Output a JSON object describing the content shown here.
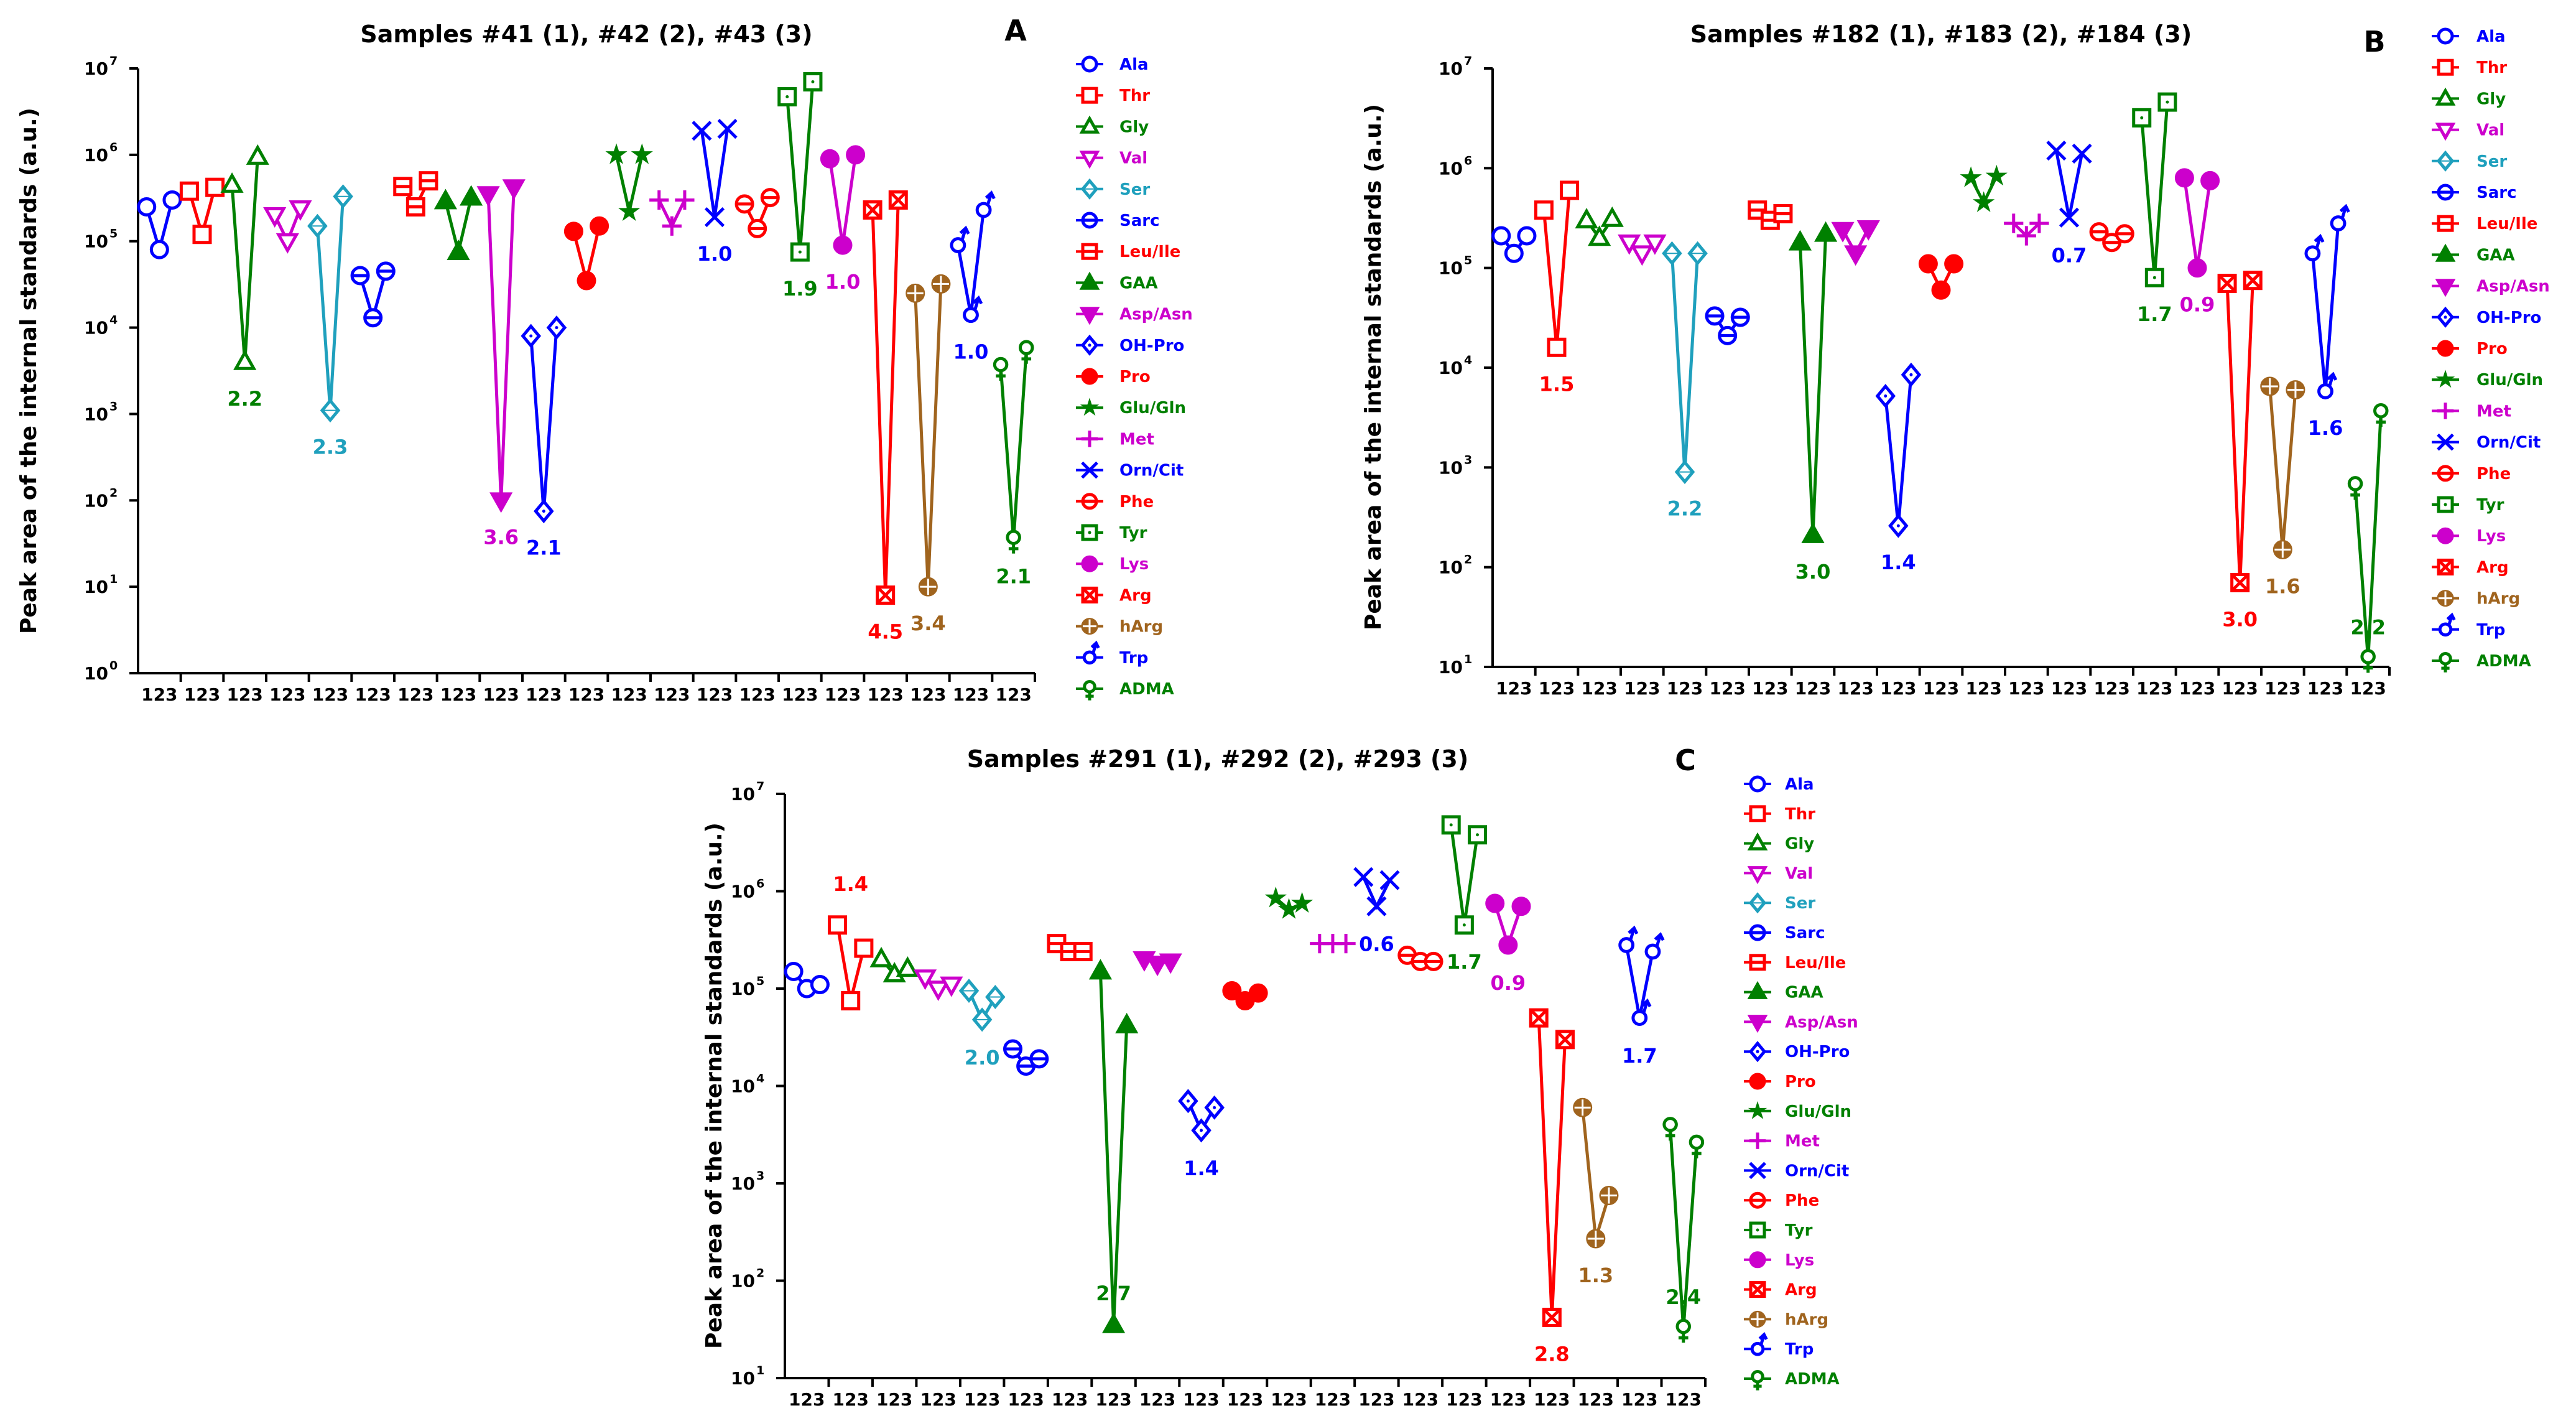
{
  "analytes": [
    {
      "name": "Ala",
      "color": "#0000ff",
      "marker": "circle-open"
    },
    {
      "name": "Thr",
      "color": "#ff0000",
      "marker": "square-open"
    },
    {
      "name": "Gly",
      "color": "#008000",
      "marker": "triangle-open"
    },
    {
      "name": "Val",
      "color": "#cc00cc",
      "marker": "triangle-down-open"
    },
    {
      "name": "Ser",
      "color": "#1fa0bd",
      "marker": "diamond-open"
    },
    {
      "name": "Sarc",
      "color": "#0000ff",
      "marker": "circle-bar"
    },
    {
      "name": "Leu/Ile",
      "color": "#ff0000",
      "marker": "square-bar"
    },
    {
      "name": "GAA",
      "color": "#008000",
      "marker": "triangle-filled"
    },
    {
      "name": "Asp/Asn",
      "color": "#cc00cc",
      "marker": "triangle-down-filled"
    },
    {
      "name": "OH-Pro",
      "color": "#0000ff",
      "marker": "diamond-dot"
    },
    {
      "name": "Pro",
      "color": "#ff0000",
      "marker": "circle-filled"
    },
    {
      "name": "Glu/Gln",
      "color": "#008000",
      "marker": "star"
    },
    {
      "name": "Met",
      "color": "#cc00cc",
      "marker": "plus"
    },
    {
      "name": "Orn/Cit",
      "color": "#0000ff",
      "marker": "x"
    },
    {
      "name": "Phe",
      "color": "#ff0000",
      "marker": "circle-bar"
    },
    {
      "name": "Tyr",
      "color": "#008000",
      "marker": "square-dot"
    },
    {
      "name": "Lys",
      "color": "#cc00cc",
      "marker": "circle-filled"
    },
    {
      "name": "Arg",
      "color": "#ff0000",
      "marker": "square-x"
    },
    {
      "name": "hArg",
      "color": "#a0641e",
      "marker": "circle-cross"
    },
    {
      "name": "Trp",
      "color": "#0000ff",
      "marker": "circle-arrow"
    },
    {
      "name": "ADMA",
      "color": "#008000",
      "marker": "circle-stem"
    }
  ],
  "chart_data": [
    {
      "panel": "A",
      "type": "line",
      "scale": "log",
      "title": "Samples #41 (1), #42 (2), #43 (3)",
      "ylabel": "Peak area of the internal standards (a.u.)",
      "ylim": [
        1,
        10000000
      ],
      "y_ticks": [
        {
          "b": "10",
          "e": "0"
        },
        {
          "b": "10",
          "e": "1"
        },
        {
          "b": "10",
          "e": "2"
        },
        {
          "b": "10",
          "e": "3"
        },
        {
          "b": "10",
          "e": "4"
        },
        {
          "b": "10",
          "e": "5"
        },
        {
          "b": "10",
          "e": "6"
        },
        {
          "b": "10",
          "e": "7"
        }
      ],
      "group_tick_label": "123",
      "series": [
        {
          "name": "Ala",
          "values": [
            250000,
            80000,
            300000
          ]
        },
        {
          "name": "Thr",
          "values": [
            380000,
            120000,
            420000
          ]
        },
        {
          "name": "Gly",
          "values": [
            450000,
            4000,
            950000
          ],
          "annotation": "2.2"
        },
        {
          "name": "Val",
          "values": [
            200000,
            100000,
            240000
          ]
        },
        {
          "name": "Ser",
          "values": [
            150000,
            1100,
            330000
          ],
          "annotation": "2.3"
        },
        {
          "name": "Sarc",
          "values": [
            40000,
            13000,
            45000
          ]
        },
        {
          "name": "Leu/Ile",
          "values": [
            430000,
            250000,
            500000
          ]
        },
        {
          "name": "GAA",
          "values": [
            290000,
            75000,
            320000
          ]
        },
        {
          "name": "Asp/Asn",
          "values": [
            350000,
            100,
            420000
          ],
          "annotation": "3.6"
        },
        {
          "name": "OH-Pro",
          "values": [
            8000,
            75,
            10000
          ],
          "annotation": "2.1"
        },
        {
          "name": "Pro",
          "values": [
            130000,
            35000,
            150000
          ]
        },
        {
          "name": "Glu/Gln",
          "values": [
            1000000,
            220000,
            1000000
          ]
        },
        {
          "name": "Met",
          "values": [
            300000,
            150000,
            300000
          ]
        },
        {
          "name": "Orn/Cit",
          "values": [
            1900000,
            190000,
            2000000
          ],
          "annotation": "1.0"
        },
        {
          "name": "Phe",
          "values": [
            270000,
            140000,
            320000
          ]
        },
        {
          "name": "Tyr",
          "values": [
            4700000,
            75000,
            7000000
          ],
          "annotation": "1.9"
        },
        {
          "name": "Lys",
          "values": [
            900000,
            90000,
            1000000
          ],
          "annotation": "1.0"
        },
        {
          "name": "Arg",
          "values": [
            230000,
            8,
            300000
          ],
          "annotation": "4.5"
        },
        {
          "name": "hArg",
          "values": [
            25000,
            10,
            32000
          ],
          "annotation": "3.4"
        },
        {
          "name": "Trp",
          "values": [
            90000,
            14000,
            230000
          ],
          "annotation": "1.0"
        },
        {
          "name": "ADMA",
          "values": [
            3500,
            35,
            5500
          ],
          "annotation": "2.1"
        }
      ]
    },
    {
      "panel": "B",
      "type": "line",
      "scale": "log",
      "title": "Samples #182 (1), #183 (2), #184 (3)",
      "ylabel": "Peak area of the internal standards (a.u.)",
      "ylim": [
        10,
        10000000
      ],
      "y_ticks": [
        {
          "b": "10",
          "e": "1"
        },
        {
          "b": "10",
          "e": "2"
        },
        {
          "b": "10",
          "e": "3"
        },
        {
          "b": "10",
          "e": "4"
        },
        {
          "b": "10",
          "e": "5"
        },
        {
          "b": "10",
          "e": "6"
        },
        {
          "b": "10",
          "e": "7"
        }
      ],
      "group_tick_label": "123",
      "series": [
        {
          "name": "Ala",
          "values": [
            210000,
            140000,
            210000
          ]
        },
        {
          "name": "Thr",
          "values": [
            380000,
            16000,
            600000
          ],
          "annotation": "1.5"
        },
        {
          "name": "Gly",
          "values": [
            300000,
            200000,
            310000
          ]
        },
        {
          "name": "Val",
          "values": [
            180000,
            140000,
            180000
          ]
        },
        {
          "name": "Ser",
          "values": [
            140000,
            900,
            140000
          ],
          "annotation": "2.2"
        },
        {
          "name": "Sarc",
          "values": [
            33000,
            21000,
            32000
          ]
        },
        {
          "name": "Leu/Ile",
          "values": [
            380000,
            300000,
            350000
          ]
        },
        {
          "name": "GAA",
          "values": [
            180000,
            210,
            220000
          ],
          "annotation": "3.0"
        },
        {
          "name": "Asp/Asn",
          "values": [
            240000,
            140000,
            250000
          ]
        },
        {
          "name": "OH-Pro",
          "values": [
            5200,
            260,
            8500
          ],
          "annotation": "1.4"
        },
        {
          "name": "Pro",
          "values": [
            110000,
            60000,
            110000
          ]
        },
        {
          "name": "Glu/Gln",
          "values": [
            800000,
            450000,
            830000
          ]
        },
        {
          "name": "Met",
          "values": [
            280000,
            210000,
            280000
          ]
        },
        {
          "name": "Orn/Cit",
          "values": [
            1500000,
            320000,
            1400000
          ],
          "annotation": "0.7"
        },
        {
          "name": "Phe",
          "values": [
            230000,
            180000,
            220000
          ]
        },
        {
          "name": "Tyr",
          "values": [
            3200000,
            80000,
            4600000
          ],
          "annotation": "1.7"
        },
        {
          "name": "Lys",
          "values": [
            800000,
            100000,
            750000
          ],
          "annotation": "0.9"
        },
        {
          "name": "Arg",
          "values": [
            70000,
            70,
            75000
          ],
          "annotation": "3.0"
        },
        {
          "name": "hArg",
          "values": [
            6500,
            150,
            6000
          ],
          "annotation": "1.6"
        },
        {
          "name": "Trp",
          "values": [
            140000,
            5800,
            280000
          ],
          "annotation": "1.6"
        },
        {
          "name": "ADMA",
          "values": [
            650,
            12,
            3500
          ],
          "annotation": "2.2"
        }
      ]
    },
    {
      "panel": "C",
      "type": "line",
      "scale": "log",
      "title": "Samples #291 (1), #292 (2), #293 (3)",
      "ylabel": "Peak area of the internal standards (a.u.)",
      "ylim": [
        10,
        10000000
      ],
      "y_ticks": [
        {
          "b": "10",
          "e": "1"
        },
        {
          "b": "10",
          "e": "2"
        },
        {
          "b": "10",
          "e": "3"
        },
        {
          "b": "10",
          "e": "4"
        },
        {
          "b": "10",
          "e": "5"
        },
        {
          "b": "10",
          "e": "6"
        },
        {
          "b": "10",
          "e": "7"
        }
      ],
      "group_tick_label": "123",
      "series": [
        {
          "name": "Ala",
          "values": [
            150000,
            100000,
            110000
          ]
        },
        {
          "name": "Thr",
          "values": [
            450000,
            75000,
            260000
          ],
          "annotation": "1.4"
        },
        {
          "name": "Gly",
          "values": [
            200000,
            140000,
            160000
          ]
        },
        {
          "name": "Val",
          "values": [
            130000,
            100000,
            110000
          ]
        },
        {
          "name": "Ser",
          "values": [
            95000,
            48000,
            82000
          ],
          "annotation": "2.0"
        },
        {
          "name": "Sarc",
          "values": [
            24000,
            16000,
            19000
          ]
        },
        {
          "name": "Leu/Ile",
          "values": [
            290000,
            240000,
            240000
          ]
        },
        {
          "name": "GAA",
          "values": [
            150000,
            35,
            42000
          ],
          "annotation": "2.7"
        },
        {
          "name": "Asp/Asn",
          "values": [
            200000,
            180000,
            190000
          ]
        },
        {
          "name": "OH-Pro",
          "values": [
            7000,
            3500,
            6000
          ],
          "annotation": "1.4"
        },
        {
          "name": "Pro",
          "values": [
            95000,
            75000,
            90000
          ]
        },
        {
          "name": "Glu/Gln",
          "values": [
            850000,
            650000,
            750000
          ]
        },
        {
          "name": "Met",
          "values": [
            290000,
            290000,
            290000
          ]
        },
        {
          "name": "Orn/Cit",
          "values": [
            1400000,
            700000,
            1300000
          ],
          "annotation": "0.6"
        },
        {
          "name": "Phe",
          "values": [
            220000,
            190000,
            190000
          ]
        },
        {
          "name": "Tyr",
          "values": [
            4800000,
            450000,
            3800000
          ],
          "annotation": "1.7"
        },
        {
          "name": "Lys",
          "values": [
            750000,
            280000,
            700000
          ],
          "annotation": "0.9"
        },
        {
          "name": "Arg",
          "values": [
            50000,
            42,
            30000
          ],
          "annotation": "2.8"
        },
        {
          "name": "hArg",
          "values": [
            6000,
            270,
            750
          ],
          "annotation": "1.3"
        },
        {
          "name": "Trp",
          "values": [
            280000,
            50000,
            240000
          ],
          "annotation": "1.7"
        },
        {
          "name": "ADMA",
          "values": [
            3800,
            32,
            2500
          ],
          "annotation": "2.4"
        }
      ]
    }
  ]
}
